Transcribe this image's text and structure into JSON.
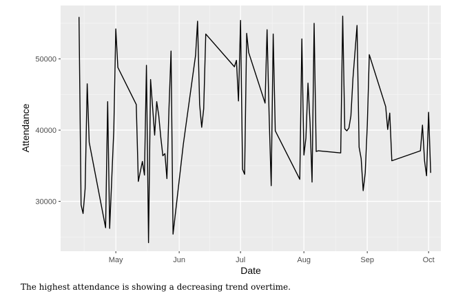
{
  "chart_data": {
    "type": "line",
    "xlabel": "Date",
    "ylabel": "Attendance",
    "x_ticks": [
      "May",
      "Jun",
      "Jul",
      "Aug",
      "Sep",
      "Oct"
    ],
    "y_ticks": [
      30000,
      40000,
      50000
    ],
    "xlim": [
      "2018-04-04",
      "2018-10-07"
    ],
    "ylim": [
      23000,
      57500
    ],
    "grid": true,
    "panel_color": "#ebebeb",
    "line_color": "#000000",
    "series": [
      {
        "x": [
          "2018-04-13",
          "2018-04-14",
          "2018-04-15",
          "2018-04-16",
          "2018-04-17",
          "2018-04-18",
          "2018-04-26",
          "2018-04-27",
          "2018-04-28",
          "2018-04-30",
          "2018-05-01",
          "2018-05-02",
          "2018-05-11",
          "2018-05-12",
          "2018-05-14",
          "2018-05-15",
          "2018-05-16",
          "2018-05-17",
          "2018-05-18",
          "2018-05-20",
          "2018-05-21",
          "2018-05-22",
          "2018-05-23",
          "2018-05-24",
          "2018-05-25",
          "2018-05-26",
          "2018-05-27",
          "2018-05-28",
          "2018-05-29",
          "2018-06-03",
          "2018-06-09",
          "2018-06-10",
          "2018-06-11",
          "2018-06-12",
          "2018-06-13",
          "2018-06-14",
          "2018-06-28",
          "2018-06-29",
          "2018-06-30",
          "2018-07-01",
          "2018-07-02",
          "2018-07-03",
          "2018-07-04",
          "2018-07-05",
          "2018-07-13",
          "2018-07-14",
          "2018-07-15",
          "2018-07-16",
          "2018-07-17",
          "2018-07-18",
          "2018-07-30",
          "2018-07-31",
          "2018-08-01",
          "2018-08-02",
          "2018-08-03",
          "2018-08-04",
          "2018-08-05",
          "2018-08-06",
          "2018-08-07",
          "2018-08-08",
          "2018-08-19",
          "2018-08-20",
          "2018-08-21",
          "2018-08-22",
          "2018-08-23",
          "2018-08-24",
          "2018-08-25",
          "2018-08-27",
          "2018-08-28",
          "2018-08-29",
          "2018-08-30",
          "2018-08-31",
          "2018-09-01",
          "2018-09-02",
          "2018-09-10",
          "2018-09-11",
          "2018-09-12",
          "2018-09-13",
          "2018-09-27",
          "2018-09-28",
          "2018-09-29",
          "2018-09-30",
          "2018-10-01",
          "2018-10-02"
        ],
        "values": [
          55900,
          29500,
          28300,
          31800,
          46500,
          38300,
          26300,
          44000,
          26200,
          40000,
          54200,
          48800,
          43600,
          32800,
          35600,
          33700,
          49100,
          24200,
          47100,
          39300,
          44000,
          42000,
          39000,
          36400,
          36700,
          33200,
          43000,
          51100,
          25400,
          38000,
          50500,
          55300,
          43600,
          40400,
          43000,
          53500,
          48900,
          49800,
          44100,
          55400,
          34500,
          33800,
          53600,
          50900,
          43800,
          54100,
          42000,
          32200,
          53500,
          39900,
          33100,
          52800,
          36500,
          38900,
          46600,
          41000,
          32700,
          55000,
          37000,
          37100,
          36800,
          56000,
          40200,
          39900,
          40300,
          42000,
          47300,
          54700,
          37600,
          36000,
          31500,
          34000,
          40700,
          50600,
          43300,
          40100,
          42400,
          35700,
          37100,
          40700,
          35700,
          33600,
          42500,
          34000
        ]
      }
    ]
  },
  "caption": "The highest attendance is showing a decreasing trend overtime."
}
